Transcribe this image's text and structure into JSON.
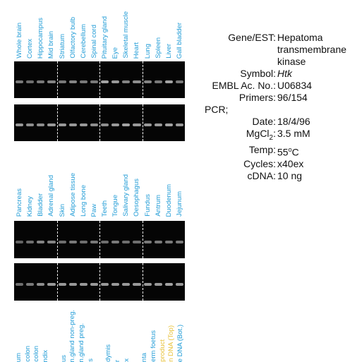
{
  "panels": [
    {
      "lanes": [
        "Whole brain",
        "Cortex",
        "Hippocampus",
        "Mid brain",
        "Striatum",
        "Olfactory bulb",
        "Cerebellum",
        "Spinal cord",
        "Pituitary gland",
        "Eye",
        "Skeletal muscle",
        "Heart",
        "Lung",
        "Spleen",
        "Liver",
        "Gall bladder"
      ],
      "lane_colors": [
        "#1f9bd6",
        "#1f9bd6",
        "#1f9bd6",
        "#1f9bd6",
        "#1f9bd6",
        "#1f9bd6",
        "#1f9bd6",
        "#1f9bd6",
        "#1f9bd6",
        "#1f9bd6",
        "#1f9bd6",
        "#1f9bd6",
        "#1f9bd6",
        "#1f9bd6",
        "#1f9bd6",
        "#1f9bd6"
      ],
      "gel_top_band_intensity": [
        0.55,
        0.5,
        0.55,
        0.6,
        0.55,
        0.6,
        0.55,
        0.55,
        0.75,
        0.7,
        0.6,
        0.65,
        0.6,
        0.55,
        0.75,
        0.55
      ],
      "gel_bottom_band_intensity": [
        0.7,
        0.65,
        0.65,
        0.7,
        0.7,
        0.7,
        0.7,
        0.65,
        0.65,
        0.7,
        0.75,
        0.7,
        0.7,
        0.7,
        0.75,
        0.7
      ]
    },
    {
      "lanes": [
        "Pancreas",
        "Kidney",
        "Bladder",
        "Adrenal gland",
        "Skin",
        "Adipose tissue",
        "Long bone",
        "Paw",
        "Teeth",
        "Tongue",
        "Salivary gland",
        "Oesophagus",
        "Fundus",
        "Antrum",
        "Duodenum",
        "Jejunum"
      ],
      "lane_colors": [
        "#1f9bd6",
        "#1f9bd6",
        "#1f9bd6",
        "#1f9bd6",
        "#1f9bd6",
        "#1f9bd6",
        "#1f9bd6",
        "#1f9bd6",
        "#1f9bd6",
        "#1f9bd6",
        "#1f9bd6",
        "#1f9bd6",
        "#1f9bd6",
        "#1f9bd6",
        "#1f9bd6",
        "#1f9bd6"
      ],
      "gel_top_band_intensity": [
        0.45,
        0.5,
        0.6,
        0.6,
        0.5,
        0.55,
        0.5,
        0.55,
        0.5,
        0.55,
        0.5,
        0.5,
        0.55,
        0.55,
        0.55,
        0.55
      ],
      "gel_bottom_band_intensity": [
        0.5,
        0.55,
        0.65,
        0.7,
        0.7,
        0.7,
        0.7,
        0.7,
        0.7,
        0.7,
        0.7,
        0.7,
        0.7,
        0.7,
        0.75,
        0.7
      ]
    },
    {
      "lanes": [
        "um",
        "colon",
        "colon",
        "ndix",
        "",
        "us",
        "n.gland non-preg.",
        "n.gland preg.",
        "s",
        "",
        "dymis",
        "r",
        "x",
        "",
        "nta",
        "erm foetus",
        "product",
        "n DNA (Top)",
        "e DNA (Bot.)"
      ],
      "lane_colors": [
        "#1f9bd6",
        "#1f9bd6",
        "#1f9bd6",
        "#1f9bd6",
        "#1f9bd6",
        "#1f9bd6",
        "#1f9bd6",
        "#1f9bd6",
        "#1f9bd6",
        "#1f9bd6",
        "#1f9bd6",
        "#1f9bd6",
        "#1f9bd6",
        "#1f9bd6",
        "#1f9bd6",
        "#1f9bd6",
        "#e8c23a",
        "#e8c23a",
        "#1f9bd6"
      ]
    }
  ],
  "info": {
    "gene_label": "Gene/EST:",
    "gene_value_1": "Hepatoma",
    "gene_value_2": "transmembrane",
    "gene_value_3": "kinase",
    "symbol_label": "Symbol:",
    "symbol_value": "Htk",
    "embl_label": "EMBL Ac. No.:",
    "embl_value": "U06834",
    "primers_label": "Primers:",
    "primers_value": "96/154",
    "pcr_label": "PCR;",
    "date_label": "Date:",
    "date_value": "18/4/96",
    "mgcl_label": "MgCl",
    "mgcl_sub": "2",
    "mgcl_colon": ":",
    "mgcl_value": "3.5 mM",
    "temp_label": "Temp:",
    "temp_value_num": "55",
    "temp_value_sup": "o",
    "temp_value_unit": "C",
    "cycles_label": "Cycles:",
    "cycles_value": "x40ex",
    "cdna_label": "cDNA:",
    "cdna_value": "10 ng"
  }
}
